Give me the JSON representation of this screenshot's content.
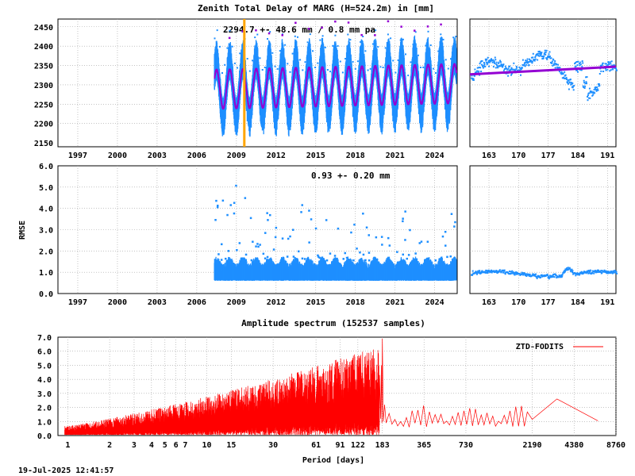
{
  "page": {
    "main_title": "Zenith Total Delay of MARG (H=524.2m) in [mm]",
    "timestamp": "19-Jul-2025 12:41:57"
  },
  "colors": {
    "observations": "#1e8fff",
    "fit": "#9400d3",
    "event_marker": "#ffa500",
    "spectrum": "#ff0000",
    "grid": "#a0a0a0"
  },
  "chart_data": [
    {
      "id": "ztd_timeseries",
      "type": "scatter",
      "title": "Zenith Total Delay of MARG (H=524.2m) in [mm]",
      "annotation": "2294.7 +-  48.6 mm /  0.8 mm pa",
      "xlim": [
        1995.5,
        2025.7
      ],
      "ylim": [
        2140,
        2470
      ],
      "x_ticks": [
        "1997",
        "2000",
        "2003",
        "2006",
        "2009",
        "2012",
        "2015",
        "2018",
        "2021",
        "2024"
      ],
      "y_ticks": [
        "2150",
        "2200",
        "2250",
        "2300",
        "2350",
        "2400",
        "2450"
      ],
      "data_start": 2007.3,
      "mean": 2294.7,
      "amplitude_std": 48.6,
      "trend_per_year": 0.8,
      "seasonal_amplitude": 50,
      "marker_x": 2009.6,
      "marker_color": "#ffa500",
      "grid": true
    },
    {
      "id": "ztd_zoom",
      "type": "scatter",
      "xlim": [
        158.5,
        193
      ],
      "ylim": [
        2140,
        2470
      ],
      "x_ticks": [
        "163",
        "170",
        "177",
        "184",
        "191"
      ],
      "fit_values": [
        2327,
        2347
      ],
      "grid": true
    },
    {
      "id": "rmse_timeseries",
      "type": "scatter",
      "ylabel": "RMSE",
      "annotation": "0.93 +-  0.20 mm",
      "xlim": [
        1995.5,
        2025.7
      ],
      "ylim": [
        0,
        6
      ],
      "x_ticks": [
        "1997",
        "2000",
        "2003",
        "2006",
        "2009",
        "2012",
        "2015",
        "2018",
        "2021",
        "2024"
      ],
      "y_ticks": [
        "0.0",
        "1.0",
        "2.0",
        "3.0",
        "4.0",
        "5.0",
        "6.0"
      ],
      "mean": 0.93,
      "std": 0.2,
      "grid": true
    },
    {
      "id": "rmse_zoom",
      "type": "scatter",
      "xlim": [
        158.5,
        193
      ],
      "ylim": [
        0,
        6
      ],
      "x_ticks": [
        "163",
        "170",
        "177",
        "184",
        "191"
      ],
      "grid": true
    },
    {
      "id": "amplitude_spectrum",
      "type": "line",
      "title": "Amplitude spectrum (152537 samples)",
      "xlabel": "Period [days]",
      "legend": "ZTD-FODITS",
      "legend_position": "top-right",
      "x_scale": "log",
      "xlim": [
        0.85,
        8760
      ],
      "ylim": [
        0,
        7
      ],
      "x_ticks": [
        "1",
        "2",
        "3",
        "4",
        "5",
        "6",
        "7",
        "10",
        "15",
        "30",
        "61",
        "91",
        "122",
        "183",
        "365",
        "730",
        "2190",
        "4380",
        "8760"
      ],
      "y_ticks": [
        "0.0",
        "1.0",
        "2.0",
        "3.0",
        "4.0",
        "5.0",
        "6.0",
        "7.0"
      ],
      "peaks": [
        {
          "x": 183,
          "y": 6.9
        },
        {
          "x": 180,
          "y": 5.0
        },
        {
          "x": 122,
          "y": 2.5
        },
        {
          "x": 91,
          "y": 2.8
        },
        {
          "x": 3300,
          "y": 2.6
        },
        {
          "x": 6500,
          "y": 1.05
        }
      ],
      "grid": true
    }
  ]
}
